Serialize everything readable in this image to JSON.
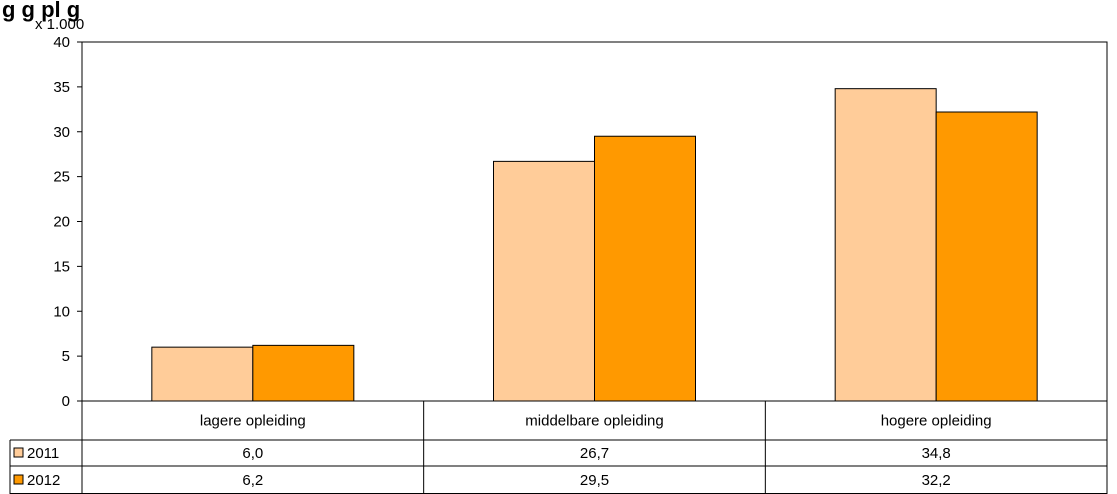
{
  "chart_data": {
    "type": "bar",
    "title": "g",
    "title_suffix": "g                    pl    g",
    "unit_label": "x 1.000",
    "categories": [
      "lagere opleiding",
      "middelbare opleiding",
      "hogere opleiding"
    ],
    "series": [
      {
        "name": "2011",
        "values": [
          6.0,
          26.7,
          34.8
        ],
        "labels": [
          "6,0",
          "26,7",
          "34,8"
        ],
        "color": "#FFCC99"
      },
      {
        "name": "2012",
        "values": [
          6.2,
          29.5,
          32.2
        ],
        "labels": [
          "6,2",
          "29,5",
          "32,2"
        ],
        "color": "#FF9900"
      }
    ],
    "ylim": [
      0,
      40
    ],
    "yticks": [
      0,
      5,
      10,
      15,
      20,
      25,
      30,
      35,
      40
    ],
    "grid": false,
    "legend": "data-table-left"
  }
}
